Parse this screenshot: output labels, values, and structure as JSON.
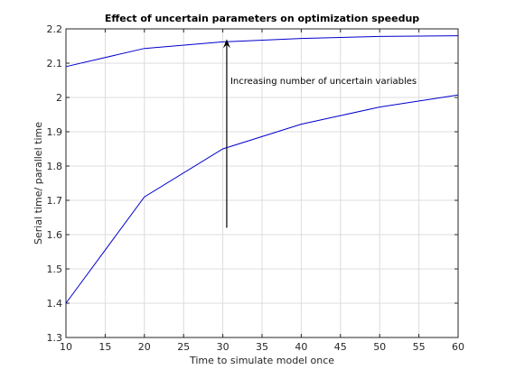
{
  "chart_data": {
    "type": "line",
    "title": "Effect of uncertain parameters on optimization speedup",
    "xlabel": "Time to simulate model once",
    "ylabel": "Serial time/ parallel time",
    "xlim": [
      10,
      60
    ],
    "ylim": [
      1.3,
      2.2
    ],
    "x_ticks": [
      10,
      15,
      20,
      25,
      30,
      35,
      40,
      45,
      50,
      55,
      60
    ],
    "x_tick_labels": [
      "10",
      "15",
      "20",
      "25",
      "30",
      "35",
      "40",
      "45",
      "50",
      "55",
      "60"
    ],
    "y_ticks": [
      1.3,
      1.4,
      1.5,
      1.6,
      1.7,
      1.8,
      1.9,
      2.0,
      2.1,
      2.2
    ],
    "y_tick_labels": [
      "1.3",
      "1.4",
      "1.5",
      "1.6",
      "1.7",
      "1.8",
      "1.9",
      "2",
      "2.1",
      "2.2"
    ],
    "grid": true,
    "line_color": "#0000cc",
    "series": [
      {
        "x": [
          10,
          20,
          30,
          40,
          50,
          60
        ],
        "values": [
          2.09,
          2.143,
          2.162,
          2.172,
          2.178,
          2.18
        ]
      },
      {
        "x": [
          10,
          20,
          30,
          40,
          50,
          60
        ],
        "values": [
          1.4,
          1.71,
          1.85,
          1.922,
          1.972,
          2.007
        ]
      }
    ],
    "annotation": {
      "text": "Increasing number of uncertain variables",
      "arrow_x": 30.5,
      "arrow_from_y": 1.62,
      "arrow_to_y": 2.17
    }
  }
}
